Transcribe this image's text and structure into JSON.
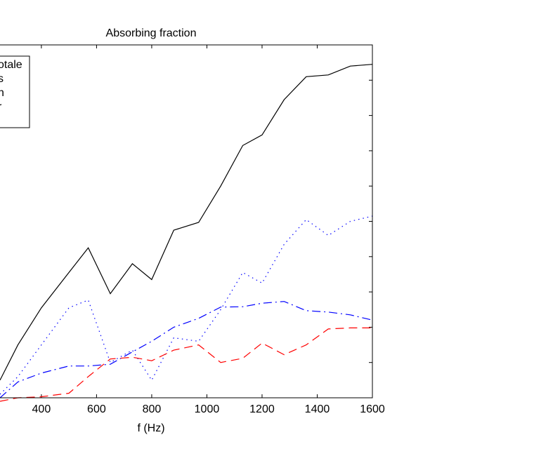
{
  "chart_data": {
    "type": "line",
    "title": "Absorbing fraction",
    "xlabel": "f (Hz)",
    "ylabel": "",
    "xlim": [
      250,
      1600
    ],
    "ylim": [
      0,
      1
    ],
    "x_ticks": [
      400,
      600,
      800,
      1000,
      1200,
      1400,
      1600
    ],
    "x_tick_labels": [
      "400",
      "600",
      "800",
      "1000",
      "1200",
      "1400",
      "1600"
    ],
    "y_ticks": [
      0,
      0.1,
      0.2,
      0.3,
      0.4,
      0.5,
      0.6,
      0.7,
      0.8,
      0.9,
      1.0
    ],
    "legend": {
      "placement": "top-left",
      "entries": [
        "otale",
        "s",
        "n",
        "r"
      ]
    },
    "x": [
      250,
      315,
      400,
      500,
      570,
      650,
      730,
      800,
      880,
      970,
      1050,
      1130,
      1200,
      1280,
      1360,
      1440,
      1520,
      1600
    ],
    "series": [
      {
        "name": "otale",
        "color": "#000000",
        "dash": "solid",
        "values": [
          0.05,
          0.15,
          0.255,
          0.355,
          0.425,
          0.295,
          0.38,
          0.335,
          0.475,
          0.497,
          0.6,
          0.715,
          0.745,
          0.845,
          0.91,
          0.915,
          0.94,
          0.945
        ]
      },
      {
        "name": "s",
        "color": "#0000ff",
        "dash": "dotted",
        "values": [
          0.01,
          0.06,
          0.15,
          0.255,
          0.277,
          0.1,
          0.135,
          0.05,
          0.17,
          0.16,
          0.25,
          0.355,
          0.325,
          0.435,
          0.505,
          0.46,
          0.5,
          0.515
        ]
      },
      {
        "name": "n",
        "color": "#0000ff",
        "dash": "dashdot",
        "values": [
          0.0,
          0.045,
          0.07,
          0.09,
          0.09,
          0.095,
          0.13,
          0.16,
          0.2,
          0.225,
          0.257,
          0.258,
          0.268,
          0.273,
          0.247,
          0.243,
          0.235,
          0.22
        ]
      },
      {
        "name": "r",
        "color": "#ff0000",
        "dash": "dashed",
        "values": [
          -0.01,
          0.0,
          0.003,
          0.013,
          0.06,
          0.11,
          0.115,
          0.105,
          0.135,
          0.15,
          0.1,
          0.112,
          0.155,
          0.122,
          0.15,
          0.195,
          0.198,
          0.198
        ]
      }
    ]
  }
}
